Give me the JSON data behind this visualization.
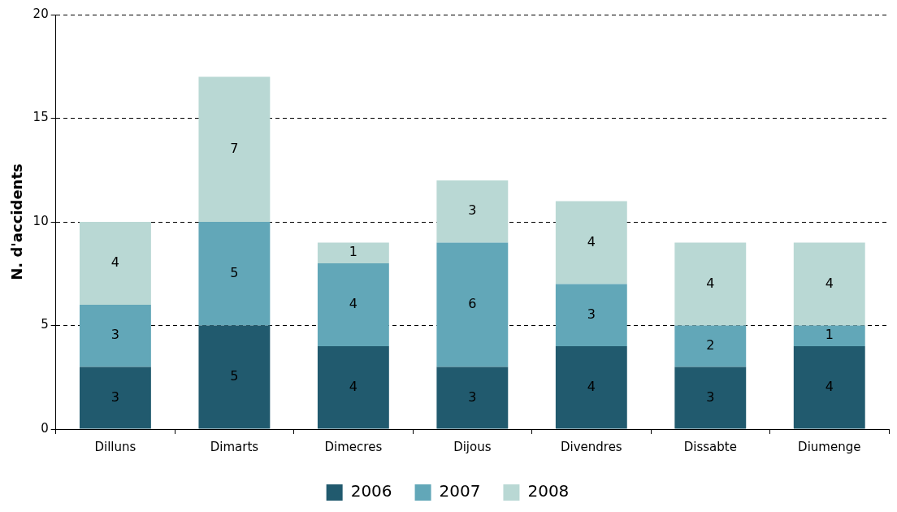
{
  "chart_data": {
    "type": "bar",
    "stacked": true,
    "ylabel": "N. d'accidents",
    "categories": [
      "Dilluns",
      "Dimarts",
      "Dimecres",
      "Dijous",
      "Divendres",
      "Dissabte",
      "Diumenge"
    ],
    "series": [
      {
        "name": "2006",
        "color": "#215a6e",
        "values": [
          3,
          5,
          4,
          3,
          4,
          3,
          4
        ]
      },
      {
        "name": "2007",
        "color": "#62a7b8",
        "values": [
          3,
          5,
          4,
          6,
          3,
          2,
          1
        ]
      },
      {
        "name": "2008",
        "color": "#b9d8d4",
        "values": [
          4,
          7,
          1,
          3,
          4,
          4,
          4
        ]
      }
    ],
    "ylim": [
      0,
      20
    ],
    "yticks": [
      0,
      5,
      10,
      15,
      20
    ],
    "grid": "y",
    "legend": "bottom",
    "data_labels": true
  }
}
